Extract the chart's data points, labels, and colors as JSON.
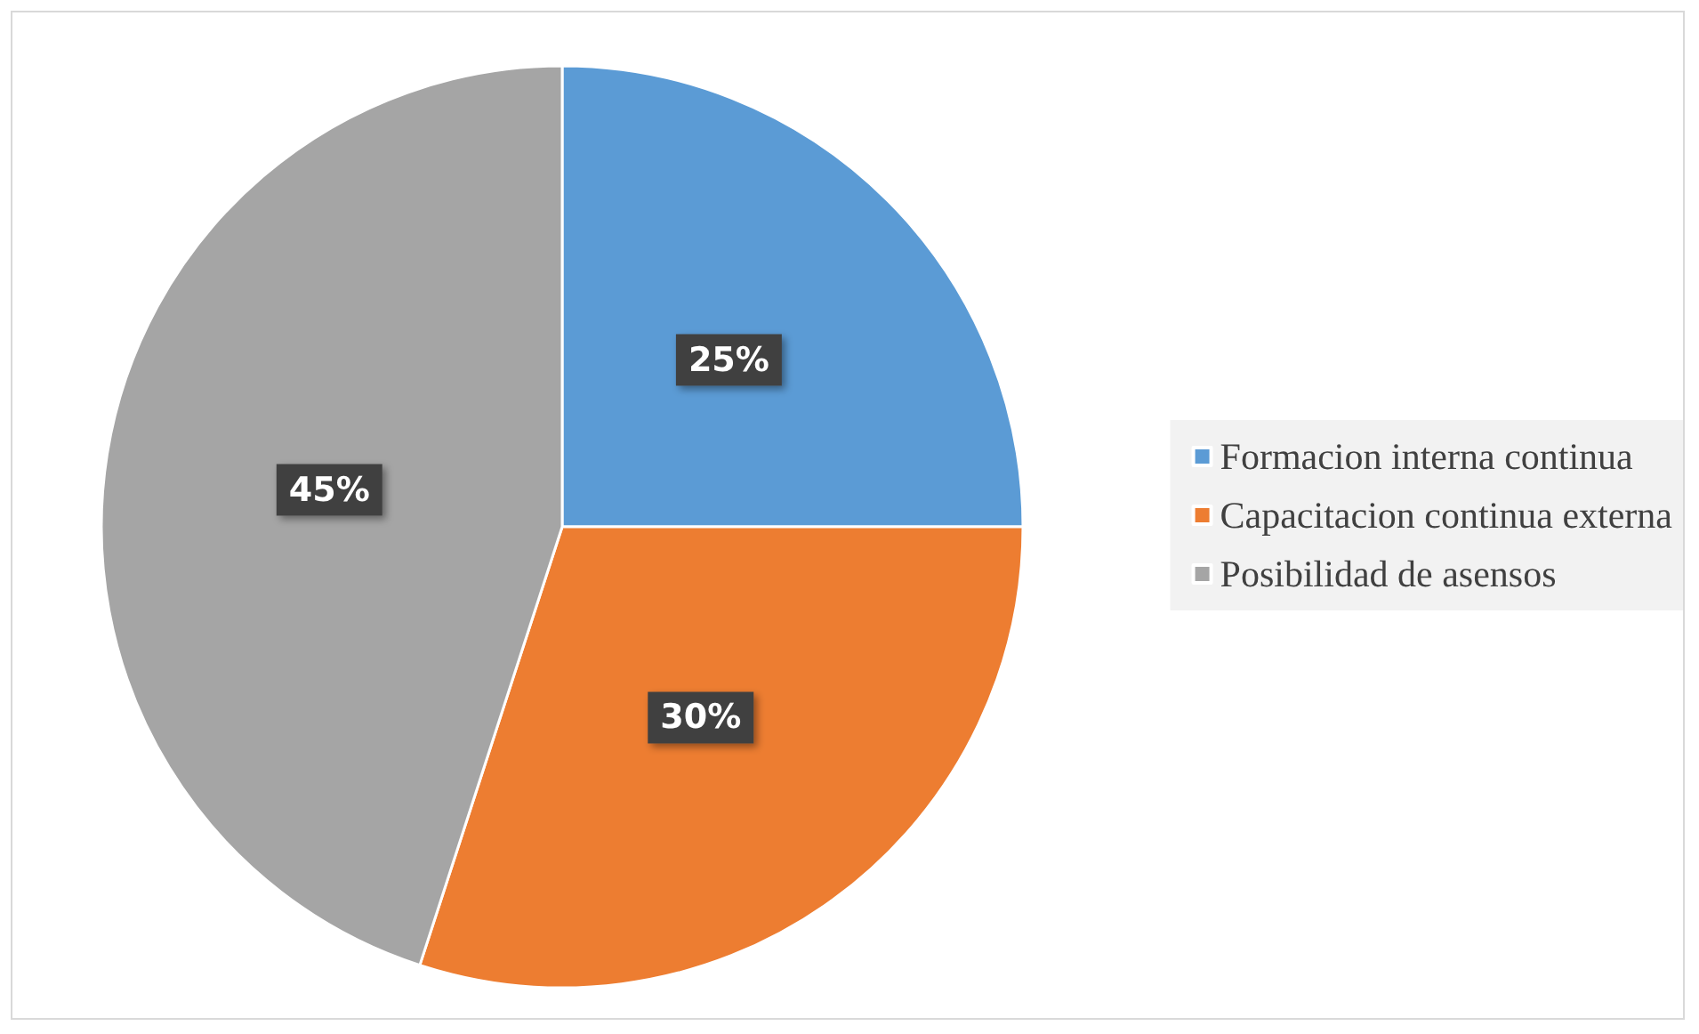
{
  "chart_data": {
    "type": "pie",
    "categories": [
      "Formacion interna continua",
      "Capacitacion continua externa",
      "Posibilidad de asensos"
    ],
    "values": [
      25,
      30,
      45
    ],
    "colors": [
      "#5b9bd5",
      "#ed7d31",
      "#a5a5a5"
    ],
    "value_labels": [
      "25%",
      "30%",
      "45%"
    ],
    "legend": "right"
  }
}
